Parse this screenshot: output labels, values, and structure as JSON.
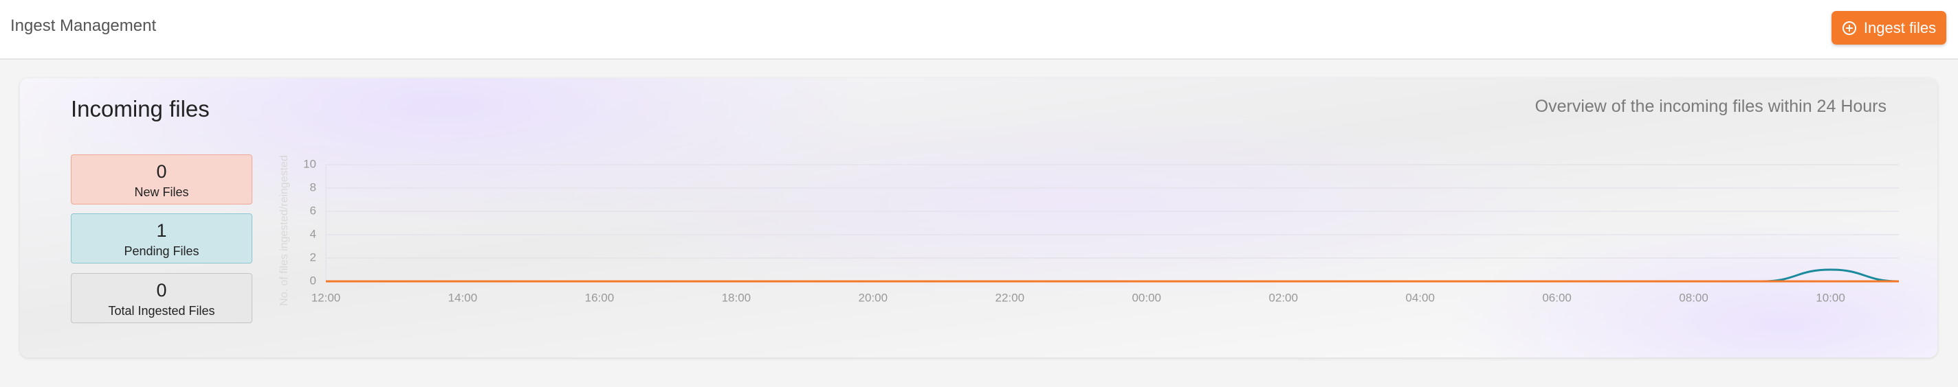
{
  "header": {
    "title": "Ingest Management",
    "button": "Ingest files"
  },
  "card": {
    "title": "Incoming files",
    "subtitle": "Overview of the incoming files within 24 Hours",
    "stats": [
      {
        "value": 0,
        "label": "New Files"
      },
      {
        "value": 1,
        "label": "Pending Files"
      },
      {
        "value": 0,
        "label": "Total Ingested Files"
      }
    ]
  },
  "chart_data": {
    "type": "line",
    "y_label": "No. of files ingested/reingested",
    "categories": [
      "12:00",
      null,
      "14:00",
      null,
      "16:00",
      null,
      "18:00",
      null,
      "20:00",
      null,
      "22:00",
      null,
      "00:00",
      null,
      "02:00",
      null,
      "04:00",
      null,
      "06:00",
      null,
      "08:00",
      null,
      "10:00",
      null
    ],
    "series": [
      {
        "color": "#1b8a9c",
        "values": [
          0,
          0,
          0,
          0,
          0,
          0,
          0,
          0,
          0,
          0,
          0,
          0,
          0,
          0,
          0,
          0,
          0,
          0,
          0,
          0,
          0,
          0,
          1,
          0
        ]
      },
      {
        "color": "#f47a2a",
        "values": [
          0,
          0,
          0,
          0,
          0,
          0,
          0,
          0,
          0,
          0,
          0,
          0,
          0,
          0,
          0,
          0,
          0,
          0,
          0,
          0,
          0,
          0,
          0,
          0
        ]
      }
    ],
    "ylim": [
      0,
      10
    ],
    "yticks": [
      0,
      2,
      4,
      6,
      8,
      10
    ],
    "grid": true
  }
}
